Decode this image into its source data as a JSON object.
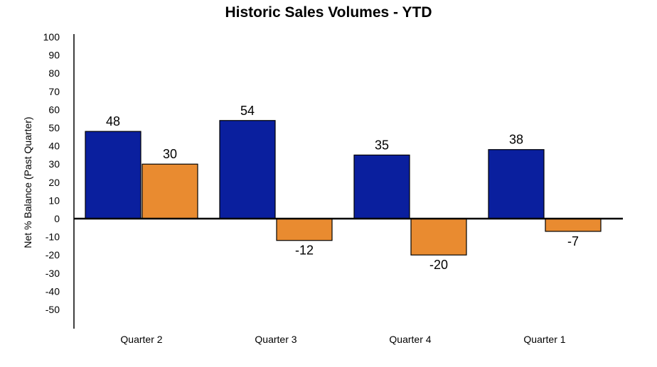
{
  "chart_data": {
    "type": "bar",
    "title": "Historic Sales Volumes - YTD",
    "xlabel": "",
    "ylabel": "Net % Balance (Past Quarter)",
    "categories": [
      "Quarter 2",
      "Quarter 3",
      "Quarter 4",
      "Quarter 1"
    ],
    "series": [
      {
        "values": [
          48,
          54,
          35,
          38
        ],
        "color": "#0a1f9e"
      },
      {
        "values": [
          30,
          -12,
          -20,
          -7
        ],
        "color": "#e98b30"
      }
    ],
    "yticks": [
      100,
      90,
      80,
      70,
      60,
      50,
      40,
      30,
      20,
      10,
      0,
      -10,
      -20,
      -30,
      -40,
      -50
    ],
    "ylim": [
      -60,
      100
    ],
    "grid": false,
    "legend": "none",
    "data_labels": true
  }
}
